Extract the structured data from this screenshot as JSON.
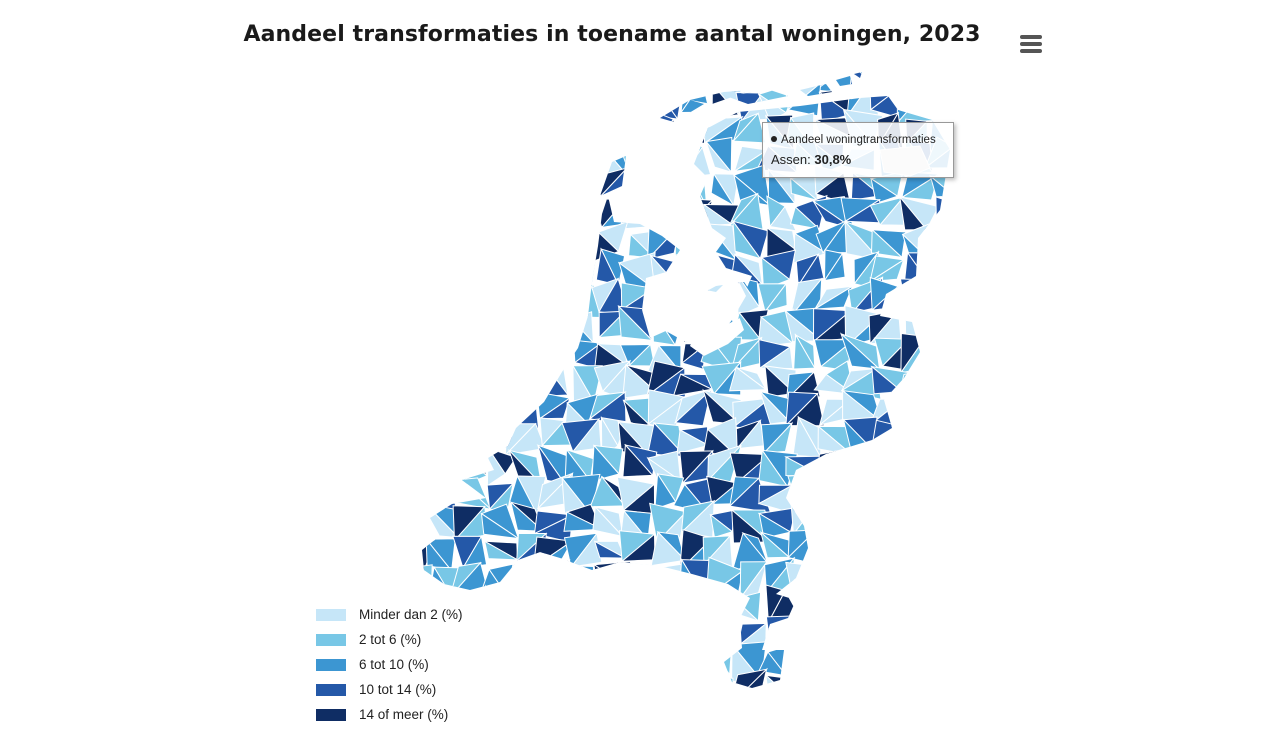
{
  "title": "Aandeel transformaties in toename aantal woningen, 2023",
  "menu_icon": "hamburger-menu-icon",
  "colors": {
    "c1": "#c6e6f8",
    "c2": "#78c7e6",
    "c3": "#3c96d2",
    "c4": "#2458a8",
    "c5": "#0f2d64",
    "border": "#ffffff",
    "sea": "#ffffff"
  },
  "tooltip": {
    "series": "Aandeel woningtransformaties",
    "name": "Assen",
    "value": "30,8%"
  },
  "legend": [
    {
      "label": "Minder dan 2 (%)",
      "color": "#c6e6f8"
    },
    {
      "label": "2 tot 6 (%)",
      "color": "#78c7e6"
    },
    {
      "label": "6 tot 10 (%)",
      "color": "#3c96d2"
    },
    {
      "label": "10 tot 14 (%)",
      "color": "#2458a8"
    },
    {
      "label": "14 of meer (%)",
      "color": "#0f2d64"
    }
  ]
}
